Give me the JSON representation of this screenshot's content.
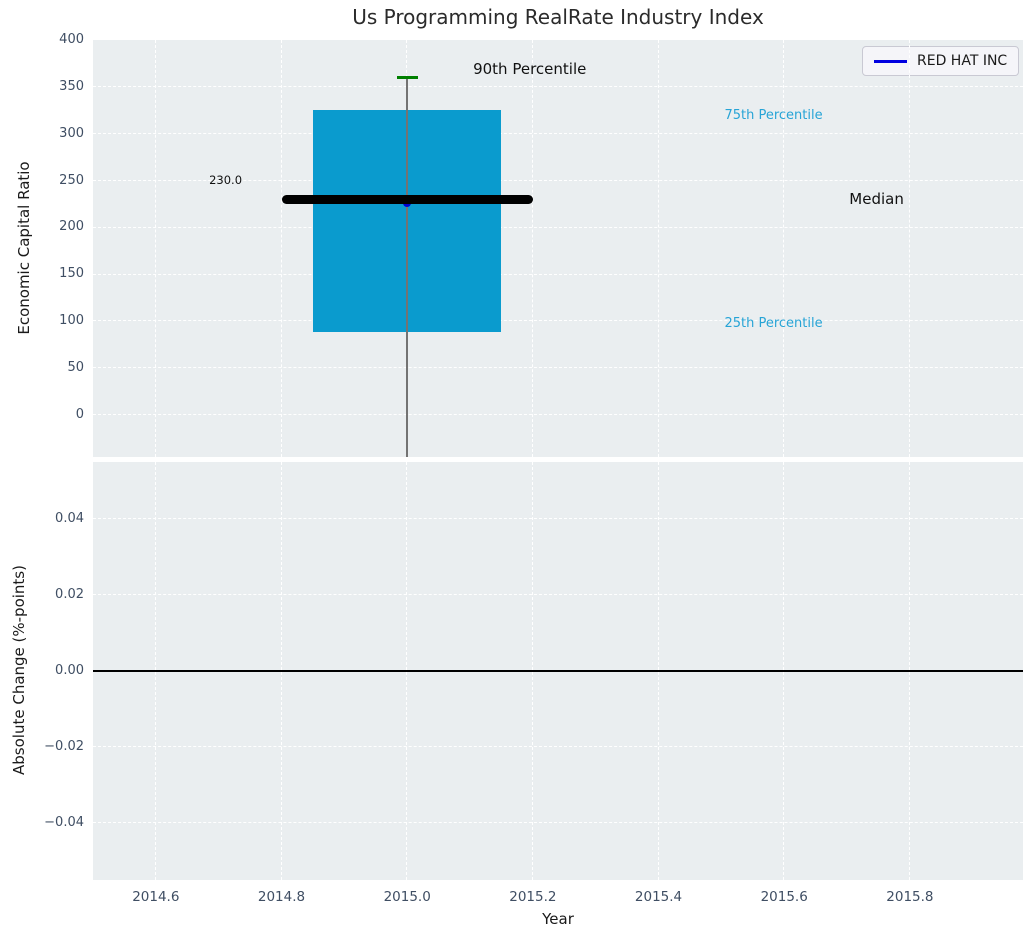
{
  "title": "Us Programming RealRate Industry Index",
  "legend": {
    "label": "RED HAT INC",
    "line_color": "#0000e0"
  },
  "style": {
    "plot_bg": "#eaeef0",
    "grid_color": "#ffffff",
    "tick_color": "#3f4e63",
    "title_color": "#2b2b2b"
  },
  "chart_data": [
    {
      "type": "box",
      "title": "Us Programming RealRate Industry Index",
      "ylabel": "Economic Capital Ratio",
      "xlabel": "Year",
      "grid": true,
      "legend_position": "upper right",
      "xlim": [
        2014.5,
        2015.98
      ],
      "ylim": [
        -45,
        400
      ],
      "xtick_values": [
        2014.6,
        2014.8,
        2015.0,
        2015.2,
        2015.4,
        2015.6,
        2015.8
      ],
      "xtick_labels": [
        "2014.6",
        "2014.8",
        "2015.0",
        "2015.2",
        "2015.4",
        "2015.6",
        "2015.8"
      ],
      "ytick_values": [
        0,
        50,
        100,
        150,
        200,
        250,
        300,
        350,
        400
      ],
      "ytick_labels": [
        "0",
        "50",
        "100",
        "150",
        "200",
        "250",
        "300",
        "350",
        "400"
      ],
      "series": [
        {
          "name": "Industry percentile box",
          "x": 2015.0,
          "p90": 360,
          "p75": 325,
          "median": 230.0,
          "p25": 88,
          "p10_clipped_below_axis": true,
          "box_halfwidth_years": 0.15,
          "median_halfwidth_years": 0.2,
          "box_color": "#0a9bce",
          "median_color": "#000000",
          "whisker_color": "#737373",
          "cap_color": "#008000"
        },
        {
          "name": "RED HAT INC",
          "marker_x": 2015.0,
          "marker_y": 226,
          "marker_color": "#0000cd"
        }
      ],
      "annotations": [
        {
          "text": "90th Percentile",
          "x": 2015.195,
          "y": 369,
          "color": "#111111",
          "size": 15
        },
        {
          "text": "230.0",
          "x": 2014.711,
          "y": 250,
          "color": "#111111",
          "size": 11.5
        },
        {
          "text": "75th Percentile",
          "x": 2015.583,
          "y": 319,
          "color": "#27a4d6",
          "size": 13
        },
        {
          "text": "Median",
          "x": 2015.747,
          "y": 230,
          "color": "#111111",
          "size": 15
        },
        {
          "text": "25th Percentile",
          "x": 2015.583,
          "y": 97,
          "color": "#27a4d6",
          "size": 13
        }
      ]
    },
    {
      "type": "line",
      "ylabel": "Absolute Change (%-points)",
      "xlabel": "Year",
      "grid": true,
      "xlim": [
        2014.5,
        2015.98
      ],
      "ylim": [
        -0.055,
        0.055
      ],
      "xtick_values": [
        2014.6,
        2014.8,
        2015.0,
        2015.2,
        2015.4,
        2015.6,
        2015.8
      ],
      "xtick_labels": [
        "2014.6",
        "2014.8",
        "2015.0",
        "2015.2",
        "2015.4",
        "2015.6",
        "2015.8"
      ],
      "ytick_values": [
        0.04,
        0.02,
        0.0,
        -0.02,
        -0.04
      ],
      "ytick_labels": [
        "0.04",
        "0.02",
        "0.00",
        "−0.02",
        "−0.04"
      ],
      "zero_line": {
        "y": 0.0,
        "color": "#000000"
      }
    }
  ]
}
